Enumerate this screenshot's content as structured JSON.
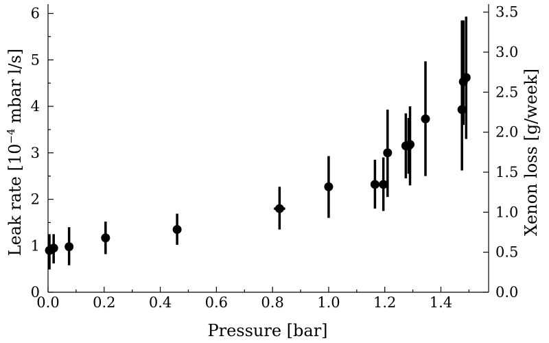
{
  "chart_data": {
    "type": "scatter",
    "title": "",
    "xlabel": "Pressure [bar]",
    "ylabel": "Leak rate [10",
    "ylabel_sup": "−4",
    "ylabel_rest": " mbar l/s]",
    "y2label": "Xenon loss [g/week]",
    "xlim": [
      0.0,
      1.57
    ],
    "ylim": [
      0,
      6.2
    ],
    "y2lim": [
      0,
      3.6
    ],
    "x_ticks": [
      "0.0",
      "0.2",
      "0.4",
      "0.6",
      "0.8",
      "1.0",
      "1.2",
      "1.4"
    ],
    "y_ticks": [
      "0",
      "1",
      "2",
      "3",
      "4",
      "5",
      "6"
    ],
    "y2_ticks": [
      "0.0",
      "0.5",
      "1.0",
      "1.5",
      "2.0",
      "2.5",
      "3.0",
      "3.5"
    ],
    "grid": false,
    "points": [
      {
        "x": 0.005,
        "y": 0.9,
        "ylow": 0.5,
        "yhigh": 1.25
      },
      {
        "x": 0.02,
        "y": 0.95,
        "ylow": 0.62,
        "yhigh": 1.25
      },
      {
        "x": 0.075,
        "y": 0.98,
        "ylow": 0.58,
        "yhigh": 1.4
      },
      {
        "x": 0.205,
        "y": 1.17,
        "ylow": 0.82,
        "yhigh": 1.52
      },
      {
        "x": 0.46,
        "y": 1.35,
        "ylow": 1.02,
        "yhigh": 1.69
      },
      {
        "x": 0.825,
        "y": 1.8,
        "ylow": 1.35,
        "yhigh": 2.27,
        "xerr": 0.02
      },
      {
        "x": 1.0,
        "y": 2.27,
        "ylow": 1.6,
        "yhigh": 2.93
      },
      {
        "x": 1.165,
        "y": 2.32,
        "ylow": 1.8,
        "yhigh": 2.85
      },
      {
        "x": 1.195,
        "y": 2.32,
        "ylow": 1.75,
        "yhigh": 2.9
      },
      {
        "x": 1.21,
        "y": 3.0,
        "ylow": 2.05,
        "yhigh": 3.93
      },
      {
        "x": 1.275,
        "y": 3.15,
        "ylow": 2.45,
        "yhigh": 3.85
      },
      {
        "x": 1.285,
        "y": 3.15,
        "ylow": 2.55,
        "yhigh": 3.75
      },
      {
        "x": 1.29,
        "y": 3.18,
        "ylow": 2.3,
        "yhigh": 4.0
      },
      {
        "x": 1.345,
        "y": 3.73,
        "ylow": 2.5,
        "yhigh": 4.97
      },
      {
        "x": 1.475,
        "y": 3.93,
        "ylow": 2.62,
        "yhigh": 5.85
      },
      {
        "x": 1.48,
        "y": 4.53,
        "ylow": 3.6,
        "yhigh": 5.85
      },
      {
        "x": 1.49,
        "y": 4.62,
        "ylow": 3.3,
        "yhigh": 5.93
      }
    ]
  }
}
